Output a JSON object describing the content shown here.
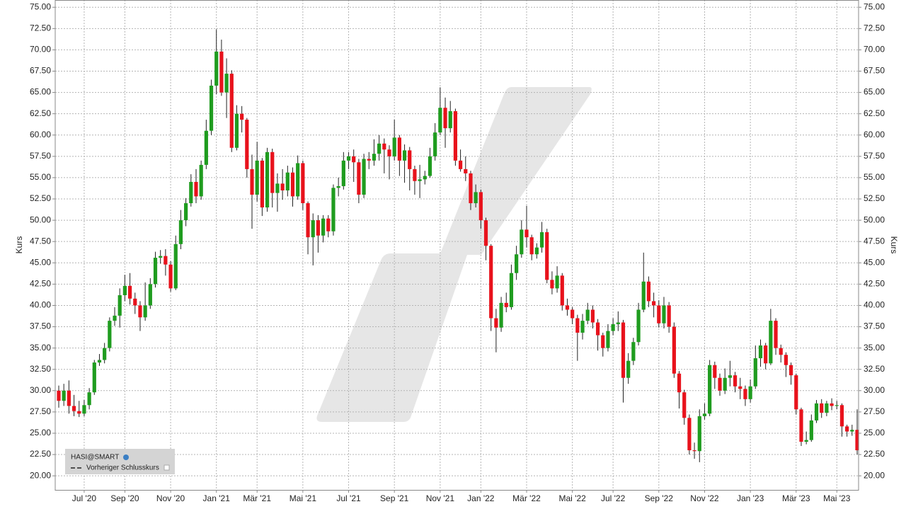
{
  "chart_data": {
    "type": "candlestick",
    "y_label": "Kurs",
    "legend": {
      "position": "bottom-left",
      "items": [
        "HASI@SMART",
        "Vorheriger Schlusskurs"
      ]
    },
    "grid": true,
    "ylim": [
      18.35,
      75.85
    ],
    "yticks": [
      {
        "value": 20,
        "label": "20.00"
      },
      {
        "value": 22.5,
        "label": "22.50"
      },
      {
        "value": 25,
        "label": "25.00"
      },
      {
        "value": 27.5,
        "label": "27.50"
      },
      {
        "value": 30,
        "label": "30.00"
      },
      {
        "value": 32.5,
        "label": "32.50"
      },
      {
        "value": 35,
        "label": "35.00"
      },
      {
        "value": 37.5,
        "label": "37.50"
      },
      {
        "value": 40,
        "label": "40.00"
      },
      {
        "value": 42.5,
        "label": "42.50"
      },
      {
        "value": 45,
        "label": "45.00"
      },
      {
        "value": 47.5,
        "label": "47.50"
      },
      {
        "value": 50,
        "label": "50.00"
      },
      {
        "value": 52.5,
        "label": "52.50"
      },
      {
        "value": 55,
        "label": "55.00"
      },
      {
        "value": 57.5,
        "label": "57.50"
      },
      {
        "value": 60,
        "label": "60.00"
      },
      {
        "value": 62.5,
        "label": "62.50"
      },
      {
        "value": 65,
        "label": "65.00"
      },
      {
        "value": 67.5,
        "label": "67.50"
      },
      {
        "value": 70,
        "label": "70.00"
      },
      {
        "value": 72.5,
        "label": "72.50"
      },
      {
        "value": 75,
        "label": "75.00"
      }
    ],
    "categories": [
      null,
      null,
      null,
      null,
      null,
      "Jul '20",
      null,
      null,
      null,
      null,
      null,
      null,
      null,
      "Sep '20",
      null,
      null,
      null,
      null,
      null,
      null,
      null,
      null,
      "Nov '20",
      null,
      null,
      null,
      null,
      null,
      null,
      null,
      null,
      "Jan '21",
      null,
      null,
      null,
      null,
      null,
      null,
      null,
      "Mär '21",
      null,
      null,
      null,
      null,
      null,
      null,
      null,
      null,
      "Mai '21",
      null,
      null,
      null,
      null,
      null,
      null,
      null,
      null,
      "Jul '21",
      null,
      null,
      null,
      null,
      null,
      null,
      null,
      null,
      "Sep '21",
      null,
      null,
      null,
      null,
      null,
      null,
      null,
      null,
      "Nov '21",
      null,
      null,
      null,
      null,
      null,
      null,
      null,
      "Jan '22",
      null,
      null,
      null,
      null,
      null,
      null,
      null,
      null,
      "Mär '22",
      null,
      null,
      null,
      null,
      null,
      null,
      null,
      null,
      "Mai '22",
      null,
      null,
      null,
      null,
      null,
      null,
      null,
      "Jul '22",
      null,
      null,
      null,
      null,
      null,
      null,
      null,
      null,
      "Sep '22",
      null,
      null,
      null,
      null,
      null,
      null,
      null,
      null,
      "Nov '22",
      null,
      null,
      null,
      null,
      null,
      null,
      null,
      null,
      "Jan '23",
      null,
      null,
      null,
      null,
      null,
      null,
      null,
      null,
      "Mär '23",
      null,
      null,
      null,
      null,
      null,
      null,
      null,
      "Mai '23",
      null,
      null,
      null,
      null
    ],
    "series": [
      {
        "name": "HASI@SMART",
        "up_color": "#1f9c1f",
        "down_color": "#e8121c",
        "open": [
          30.0,
          28.8,
          30.0,
          28.2,
          27.6,
          27.3,
          28.3,
          29.8,
          33.3,
          33.6,
          35.0,
          38.2,
          38.8,
          41.2,
          42.3,
          40.8,
          40.0,
          38.6,
          40.0,
          42.5,
          45.6,
          45.8,
          44.8,
          42.0,
          47.2,
          50.0,
          52.0,
          54.5,
          52.8,
          56.5,
          60.5,
          65.8,
          69.8,
          65.0,
          67.2,
          58.5,
          62.5,
          61.8,
          56.0,
          53.0,
          57.0,
          51.5,
          58.0,
          53.2,
          54.3,
          53.5,
          55.6,
          52.8,
          56.7,
          52.0,
          48.0,
          50.0,
          48.2,
          50.2,
          48.7,
          53.8,
          54.0,
          57.0,
          57.5,
          56.8,
          53.0,
          57.2,
          57.0,
          57.8,
          59.0,
          58.3,
          57.5,
          59.7,
          57.0,
          58.2,
          56.0,
          54.6,
          54.8,
          55.2,
          57.5,
          60.3,
          63.2,
          60.8,
          62.8,
          57.0,
          56.0,
          55.5,
          52.0,
          53.3,
          50.0,
          47.0,
          38.5,
          37.4,
          40.3,
          39.8,
          43.8,
          46.0,
          48.9,
          48.0,
          46.0,
          46.8,
          48.6,
          43.0,
          42.0,
          43.5,
          40.0,
          39.5,
          38.5,
          36.8,
          38.2,
          39.5,
          38.0,
          36.5,
          35.0,
          37.0,
          37.8,
          38.0,
          31.5,
          33.5,
          35.7,
          39.5,
          42.8,
          40.5,
          40.0,
          37.9,
          40.0,
          37.5,
          32.0,
          29.8,
          26.8,
          23.0,
          22.9,
          27.0,
          27.3,
          33.0,
          31.5,
          30.0,
          31.5,
          31.8,
          30.5,
          30.2,
          29.0,
          30.5,
          33.8,
          35.3,
          33.2,
          38.2,
          35.0,
          34.2,
          33.0,
          31.8,
          27.8,
          24.0,
          24.2,
          26.5,
          28.5,
          27.4,
          28.5,
          28.2,
          28.3,
          25.8,
          25.2,
          25.4
        ],
        "high": [
          30.6,
          30.8,
          31.2,
          29.5,
          28.8,
          28.9,
          30.3,
          33.6,
          34.3,
          35.6,
          38.6,
          39.8,
          42.0,
          43.6,
          43.8,
          41.5,
          40.5,
          42.7,
          43.2,
          46.3,
          46.5,
          46.6,
          45.2,
          48.2,
          51.2,
          52.6,
          55.4,
          56.0,
          57.0,
          61.8,
          66.5,
          72.4,
          71.2,
          69.0,
          67.6,
          63.5,
          63.4,
          62.0,
          57.7,
          59.2,
          57.3,
          58.5,
          58.4,
          55.5,
          56.0,
          56.4,
          56.2,
          57.6,
          57.0,
          52.2,
          50.8,
          50.6,
          50.6,
          50.6,
          54.2,
          55.0,
          58.0,
          58.0,
          58.3,
          57.2,
          57.8,
          58.0,
          59.5,
          60.0,
          59.6,
          58.8,
          61.8,
          60.0,
          58.9,
          58.6,
          56.4,
          56.5,
          55.8,
          58.5,
          61.4,
          65.6,
          64.4,
          64.0,
          63.1,
          58.3,
          57.5,
          55.8,
          54.2,
          53.6,
          50.3,
          47.2,
          39.6,
          41.0,
          41.5,
          44.8,
          47.0,
          50.0,
          51.7,
          48.3,
          47.3,
          49.8,
          49.0,
          44.0,
          44.6,
          43.8,
          40.8,
          39.8,
          38.9,
          39.0,
          40.3,
          40.0,
          38.4,
          36.8,
          37.8,
          38.5,
          39.3,
          38.3,
          34.4,
          36.2,
          40.3,
          46.2,
          43.4,
          41.5,
          40.6,
          41.0,
          40.4,
          38.0,
          32.3,
          30.1,
          27.2,
          23.9,
          27.8,
          28.5,
          33.6,
          33.4,
          32.0,
          32.6,
          33.5,
          32.2,
          31.5,
          30.6,
          31.3,
          35.3,
          36.0,
          35.6,
          39.6,
          38.5,
          35.4,
          34.5,
          33.3,
          32.0,
          28.0,
          25.2,
          27.2,
          28.9,
          29.0,
          28.8,
          29.1,
          28.8,
          28.5,
          26.0,
          26.0,
          27.8
        ],
        "low": [
          28.0,
          28.2,
          27.3,
          27.0,
          26.9,
          27.0,
          27.8,
          29.5,
          32.9,
          33.2,
          34.6,
          37.6,
          37.4,
          40.5,
          40.1,
          39.0,
          37.0,
          38.2,
          39.6,
          42.1,
          44.9,
          43.5,
          41.6,
          41.8,
          46.6,
          49.3,
          51.6,
          52.0,
          52.4,
          56.0,
          60.0,
          64.8,
          64.6,
          62.0,
          58.0,
          58.2,
          60.3,
          55.0,
          49.0,
          52.2,
          50.5,
          51.0,
          51.5,
          51.0,
          52.4,
          52.8,
          51.6,
          52.4,
          51.2,
          46.0,
          44.7,
          46.2,
          47.4,
          48.0,
          48.2,
          52.8,
          53.6,
          56.0,
          54.5,
          52.0,
          52.6,
          56.0,
          56.4,
          57.0,
          55.5,
          54.8,
          57.0,
          55.2,
          54.4,
          53.5,
          53.0,
          52.6,
          54.2,
          55.0,
          57.0,
          60.0,
          58.5,
          60.3,
          56.4,
          55.7,
          54.6,
          51.2,
          51.5,
          49.0,
          45.3,
          37.0,
          34.5,
          36.9,
          39.2,
          39.5,
          43.0,
          45.6,
          46.8,
          45.3,
          45.5,
          46.2,
          42.6,
          41.3,
          41.5,
          39.4,
          38.8,
          37.8,
          33.5,
          36.0,
          37.8,
          37.3,
          34.7,
          34.0,
          34.6,
          36.5,
          37.0,
          28.6,
          30.8,
          33.0,
          35.3,
          39.2,
          39.8,
          38.6,
          37.4,
          37.3,
          36.8,
          31.5,
          27.9,
          26.0,
          22.5,
          22.0,
          21.6,
          26.6,
          27.0,
          30.2,
          29.4,
          29.6,
          30.5,
          29.8,
          29.0,
          28.2,
          28.6,
          30.2,
          32.8,
          32.5,
          33.0,
          34.2,
          33.3,
          31.6,
          30.7,
          27.2,
          23.5,
          23.7,
          24.0,
          26.2,
          26.8,
          27.0,
          27.7,
          27.8,
          24.6,
          24.6,
          24.7,
          22.5
        ],
        "close": [
          28.8,
          30.0,
          28.2,
          27.6,
          27.3,
          28.3,
          29.8,
          33.3,
          33.6,
          35.0,
          38.2,
          38.8,
          41.2,
          42.3,
          40.8,
          40.0,
          38.6,
          40.0,
          42.5,
          45.6,
          45.8,
          44.8,
          42.0,
          47.2,
          50.0,
          52.0,
          54.5,
          52.8,
          56.5,
          60.5,
          65.8,
          69.8,
          65.0,
          67.2,
          58.5,
          62.5,
          61.8,
          56.0,
          53.0,
          57.0,
          51.5,
          58.0,
          53.2,
          54.3,
          53.5,
          55.6,
          52.8,
          56.7,
          52.0,
          48.0,
          50.0,
          48.2,
          50.2,
          48.7,
          53.8,
          54.0,
          57.0,
          57.5,
          56.8,
          53.0,
          57.2,
          57.0,
          57.8,
          59.0,
          58.3,
          57.5,
          59.7,
          57.0,
          58.2,
          56.0,
          54.6,
          54.8,
          55.2,
          57.5,
          60.3,
          63.2,
          60.8,
          62.8,
          57.0,
          56.0,
          55.5,
          52.0,
          53.3,
          50.0,
          47.0,
          38.5,
          37.4,
          40.3,
          39.8,
          43.8,
          46.0,
          48.9,
          48.0,
          46.0,
          46.8,
          48.6,
          43.0,
          42.0,
          43.5,
          40.0,
          39.5,
          38.5,
          36.8,
          38.2,
          39.5,
          38.0,
          36.5,
          35.0,
          37.0,
          37.8,
          38.0,
          31.5,
          33.5,
          35.7,
          39.5,
          42.8,
          40.5,
          40.0,
          37.9,
          40.0,
          37.5,
          32.0,
          29.8,
          26.8,
          23.0,
          22.9,
          27.0,
          27.3,
          33.0,
          31.5,
          30.0,
          31.5,
          31.8,
          30.5,
          30.2,
          29.0,
          30.5,
          33.8,
          35.3,
          33.2,
          38.2,
          35.0,
          34.2,
          33.0,
          31.8,
          27.8,
          24.0,
          24.2,
          26.5,
          28.5,
          27.4,
          28.5,
          28.2,
          28.3,
          25.8,
          25.2,
          25.4,
          23.0
        ]
      }
    ]
  }
}
